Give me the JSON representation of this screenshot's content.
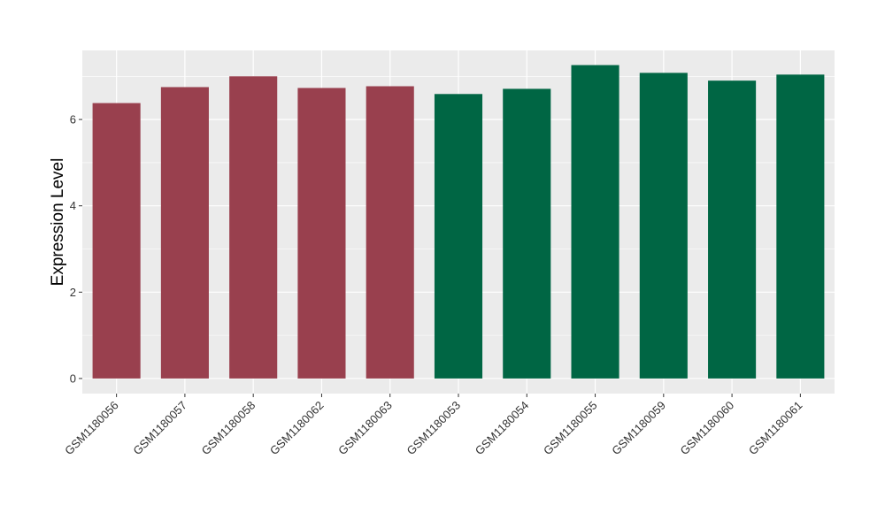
{
  "chart_data": {
    "type": "bar",
    "ylabel": "Expression Level",
    "xlabel": "",
    "ylim": [
      -0.35,
      7.6
    ],
    "yticks": [
      0,
      2,
      4,
      6
    ],
    "grid": true,
    "legend": "none",
    "panel_background": "#EBEBEB",
    "grid_color": "#FFFFFF",
    "categories": [
      "GSM1180056",
      "GSM1180057",
      "GSM1180058",
      "GSM1180062",
      "GSM1180063",
      "GSM1180053",
      "GSM1180054",
      "GSM1180055",
      "GSM1180059",
      "GSM1180060",
      "GSM1180061"
    ],
    "values": [
      6.38,
      6.75,
      7.0,
      6.73,
      6.77,
      6.59,
      6.71,
      7.26,
      7.08,
      6.9,
      7.04
    ],
    "bar_colors": [
      "#99404E",
      "#99404E",
      "#99404E",
      "#99404E",
      "#99404E",
      "#006644",
      "#006644",
      "#006644",
      "#006644",
      "#006644",
      "#006644"
    ]
  }
}
